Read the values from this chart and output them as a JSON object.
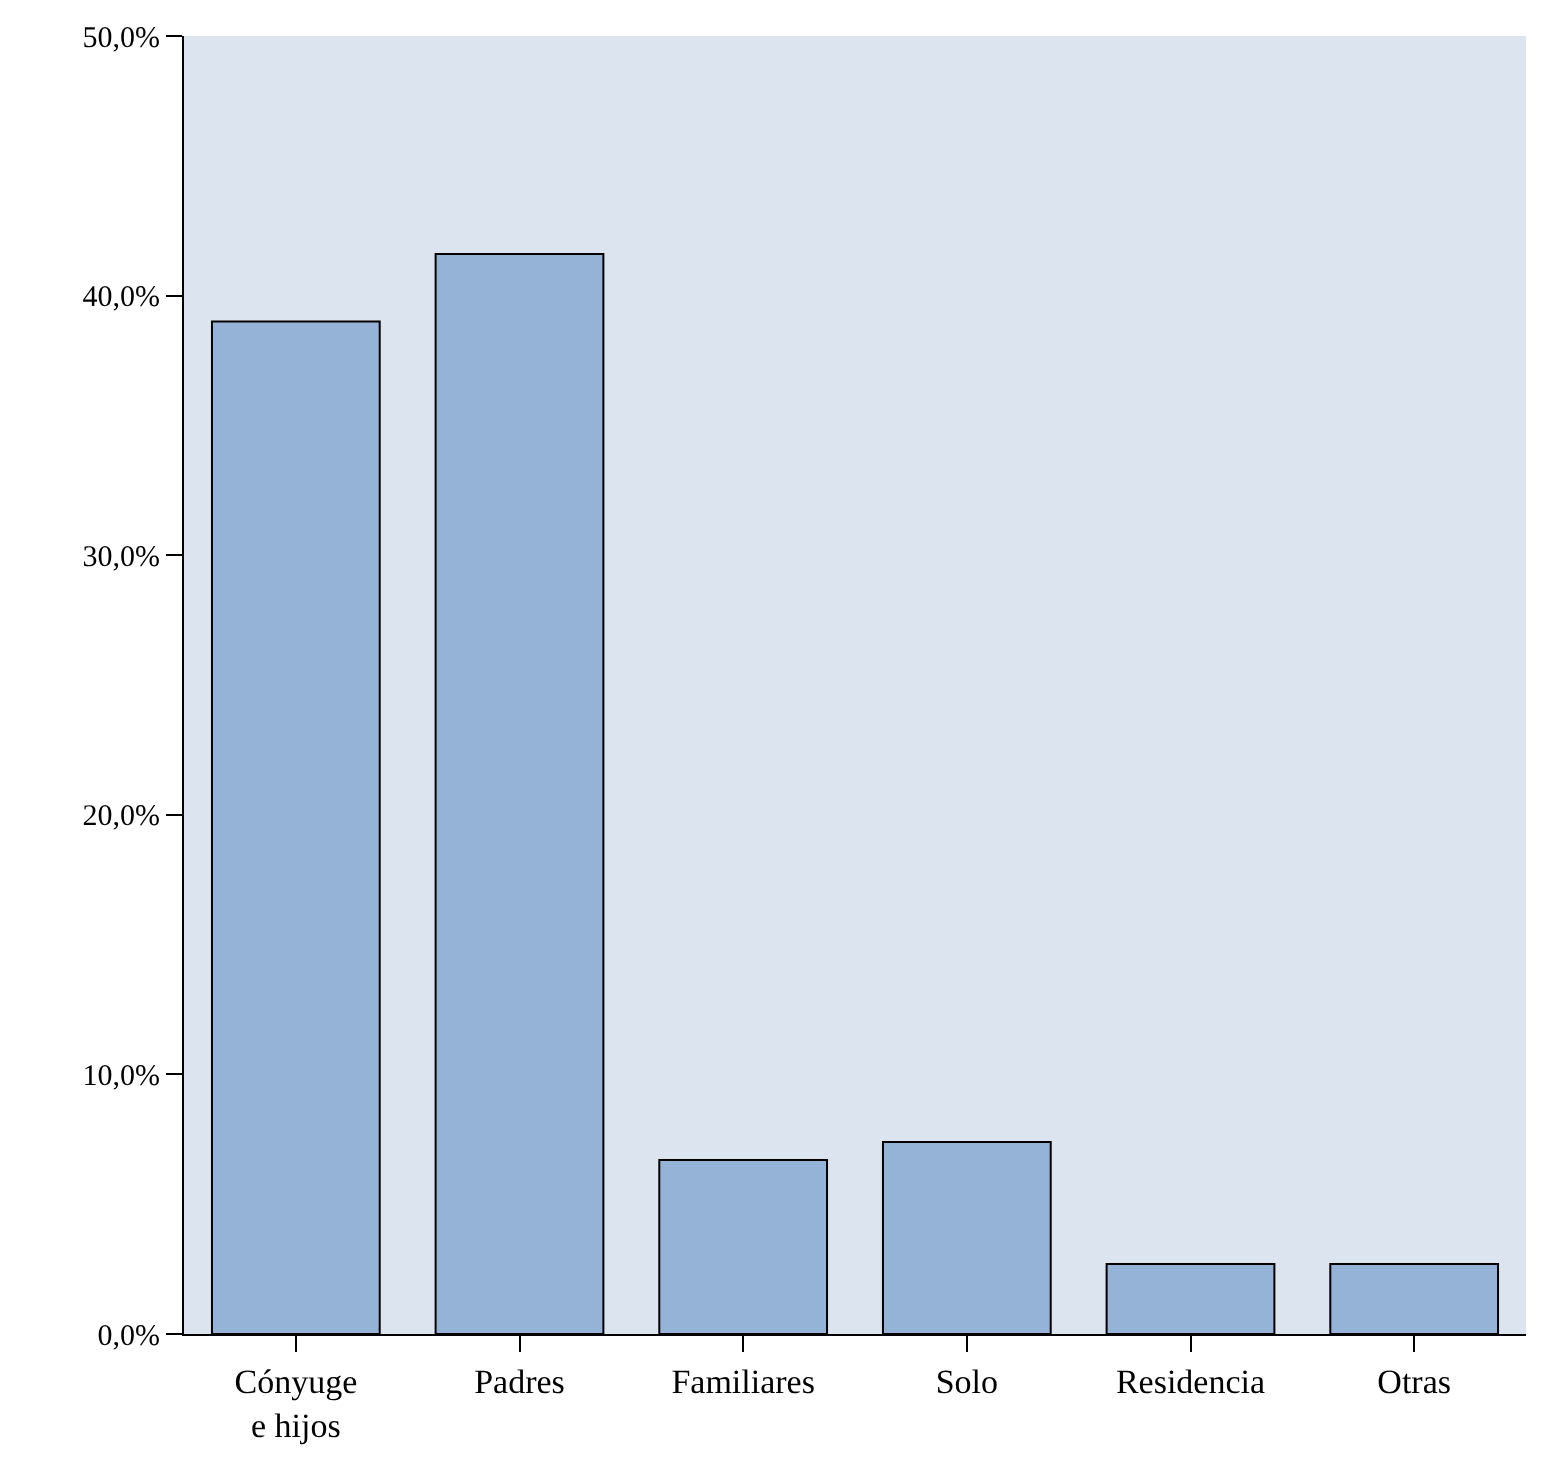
{
  "chart_data": {
    "type": "bar",
    "categories": [
      "Cónyuge\ne hijos",
      "Padres",
      "Familiares",
      "Solo",
      "Residencia",
      "Otras"
    ],
    "values": [
      39.0,
      41.6,
      6.7,
      7.4,
      2.7,
      2.7
    ],
    "color": "#95b3d7",
    "ylim": [
      0,
      50
    ],
    "yticks": [
      {
        "value": 0,
        "label": "0,0%"
      },
      {
        "value": 10,
        "label": "10,0%"
      },
      {
        "value": 20,
        "label": "20,0%"
      },
      {
        "value": 30,
        "label": "30,0%"
      },
      {
        "value": 40,
        "label": "40,0%"
      },
      {
        "value": 50,
        "label": "50,0%"
      }
    ],
    "grid": false
  }
}
